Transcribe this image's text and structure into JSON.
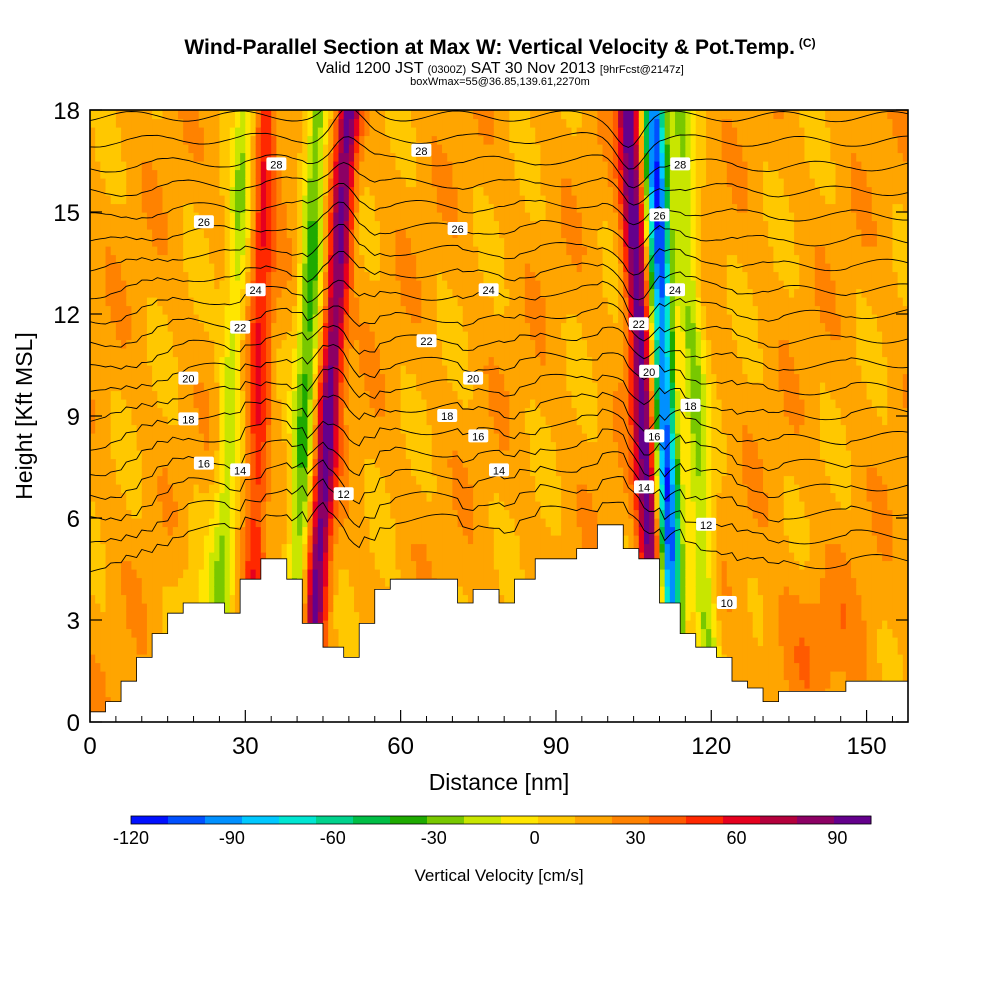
{
  "titles": {
    "main": "Wind-Parallel Section at Max W: Vertical Velocity & Pot.Temp.",
    "copyright": "(C)",
    "valid_prefix": "Valid 1200 JST",
    "valid_utc": "(0300Z)",
    "valid_date": "SAT 30 Nov 2013",
    "forecast": "[9hrFcst@2147z]",
    "boxinfo": "boxWmax=55@36.85,139.61,2270m"
  },
  "chart_data": {
    "type": "heatmap",
    "xlabel": "Distance [nm]",
    "ylabel": "Height [Kft MSL]",
    "xlim": [
      0,
      158
    ],
    "ylim": [
      0,
      18
    ],
    "x_ticks": [
      0,
      30,
      60,
      90,
      120,
      150
    ],
    "y_ticks": [
      0,
      3,
      6,
      9,
      12,
      15,
      18
    ],
    "colorbar": {
      "label": "Vertical Velocity [cm/s]",
      "range": [
        -120,
        100
      ],
      "step": 10,
      "ticks": [
        -120,
        -90,
        -60,
        -30,
        0,
        30,
        60,
        90
      ],
      "colors": [
        "#0010ff",
        "#0050ff",
        "#0090ff",
        "#00c8ff",
        "#00e6d2",
        "#00d28c",
        "#00be46",
        "#1eaa00",
        "#78c800",
        "#c8e600",
        "#ffe600",
        "#ffc800",
        "#ffa500",
        "#ff8200",
        "#ff5a00",
        "#ff2800",
        "#e6001e",
        "#b4003c",
        "#8c0064",
        "#64008c"
      ]
    },
    "terrain_kft": [
      {
        "x": 0,
        "h": 0.3
      },
      {
        "x": 3,
        "h": 0.6
      },
      {
        "x": 6,
        "h": 1.2
      },
      {
        "x": 9,
        "h": 1.9
      },
      {
        "x": 12,
        "h": 2.6
      },
      {
        "x": 15,
        "h": 3.2
      },
      {
        "x": 18,
        "h": 3.5
      },
      {
        "x": 21,
        "h": 3.5
      },
      {
        "x": 26,
        "h": 3.2
      },
      {
        "x": 29,
        "h": 4.2
      },
      {
        "x": 33,
        "h": 4.8
      },
      {
        "x": 38,
        "h": 4.2
      },
      {
        "x": 41,
        "h": 2.9
      },
      {
        "x": 45,
        "h": 2.2
      },
      {
        "x": 49,
        "h": 1.9
      },
      {
        "x": 52,
        "h": 2.9
      },
      {
        "x": 55,
        "h": 3.9
      },
      {
        "x": 58,
        "h": 4.2
      },
      {
        "x": 65,
        "h": 4.2
      },
      {
        "x": 71,
        "h": 3.5
      },
      {
        "x": 74,
        "h": 3.9
      },
      {
        "x": 79,
        "h": 3.5
      },
      {
        "x": 82,
        "h": 4.2
      },
      {
        "x": 86,
        "h": 4.8
      },
      {
        "x": 94,
        "h": 5.1
      },
      {
        "x": 98,
        "h": 5.8
      },
      {
        "x": 103,
        "h": 5.1
      },
      {
        "x": 106,
        "h": 4.8
      },
      {
        "x": 110,
        "h": 3.5
      },
      {
        "x": 114,
        "h": 2.6
      },
      {
        "x": 117,
        "h": 2.2
      },
      {
        "x": 121,
        "h": 1.9
      },
      {
        "x": 124,
        "h": 1.2
      },
      {
        "x": 127,
        "h": 1.0
      },
      {
        "x": 130,
        "h": 0.6
      },
      {
        "x": 133,
        "h": 0.9
      },
      {
        "x": 146,
        "h": 1.2
      },
      {
        "x": 158,
        "h": 1.2
      }
    ],
    "updraft_bands": [
      {
        "x_bottom": 42,
        "x_top": 50,
        "w": 70
      },
      {
        "x_bottom": 110,
        "x_top": 104,
        "w": 75
      },
      {
        "x_bottom": 31,
        "x_top": 34,
        "w": 35
      }
    ],
    "downdraft_bands": [
      {
        "x_bottom": 39,
        "x_top": 44,
        "w": -45
      },
      {
        "x_bottom": 113,
        "x_top": 109,
        "w": -110
      },
      {
        "x_bottom": 120,
        "x_top": 114,
        "w": -35
      },
      {
        "x_bottom": 24,
        "x_top": 30,
        "w": -30
      }
    ],
    "contour_labels": [
      {
        "x": 36,
        "y": 16.4,
        "v": "28"
      },
      {
        "x": 64,
        "y": 16.8,
        "v": "28"
      },
      {
        "x": 114,
        "y": 16.4,
        "v": "28"
      },
      {
        "x": 22,
        "y": 14.7,
        "v": "26"
      },
      {
        "x": 71,
        "y": 14.5,
        "v": "26"
      },
      {
        "x": 110,
        "y": 14.9,
        "v": "26"
      },
      {
        "x": 32,
        "y": 12.7,
        "v": "24"
      },
      {
        "x": 77,
        "y": 12.7,
        "v": "24"
      },
      {
        "x": 113,
        "y": 12.7,
        "v": "24"
      },
      {
        "x": 29,
        "y": 11.6,
        "v": "22"
      },
      {
        "x": 65,
        "y": 11.2,
        "v": "22"
      },
      {
        "x": 106,
        "y": 11.7,
        "v": "22"
      },
      {
        "x": 19,
        "y": 10.1,
        "v": "20"
      },
      {
        "x": 74,
        "y": 10.1,
        "v": "20"
      },
      {
        "x": 108,
        "y": 10.3,
        "v": "20"
      },
      {
        "x": 19,
        "y": 8.9,
        "v": "18"
      },
      {
        "x": 69,
        "y": 9.0,
        "v": "18"
      },
      {
        "x": 116,
        "y": 9.3,
        "v": "18"
      },
      {
        "x": 22,
        "y": 7.6,
        "v": "16"
      },
      {
        "x": 75,
        "y": 8.4,
        "v": "16"
      },
      {
        "x": 109,
        "y": 8.4,
        "v": "16"
      },
      {
        "x": 29,
        "y": 7.4,
        "v": "14"
      },
      {
        "x": 79,
        "y": 7.4,
        "v": "14"
      },
      {
        "x": 107,
        "y": 6.9,
        "v": "14"
      },
      {
        "x": 49,
        "y": 6.7,
        "v": "12"
      },
      {
        "x": 119,
        "y": 5.8,
        "v": "12"
      },
      {
        "x": 123,
        "y": 3.5,
        "v": "10"
      }
    ]
  }
}
